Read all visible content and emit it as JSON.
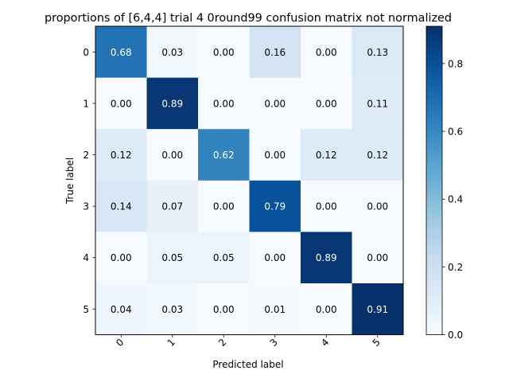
{
  "chart_data": {
    "type": "heatmap",
    "title": "proportions of [6,4,4] trial 4 0round99 confusion matrix not normalized",
    "xlabel": "Predicted label",
    "ylabel": "True label",
    "x_categories": [
      "0",
      "1",
      "2",
      "3",
      "4",
      "5"
    ],
    "y_categories": [
      "0",
      "1",
      "2",
      "3",
      "4",
      "5"
    ],
    "values": [
      [
        0.68,
        0.03,
        0.0,
        0.16,
        0.0,
        0.13
      ],
      [
        0.0,
        0.89,
        0.0,
        0.0,
        0.0,
        0.11
      ],
      [
        0.12,
        0.0,
        0.62,
        0.0,
        0.12,
        0.12
      ],
      [
        0.14,
        0.07,
        0.0,
        0.79,
        0.0,
        0.0
      ],
      [
        0.0,
        0.05,
        0.05,
        0.0,
        0.89,
        0.0
      ],
      [
        0.04,
        0.03,
        0.0,
        0.01,
        0.0,
        0.91
      ]
    ],
    "cell_labels": [
      [
        "0.68",
        "0.03",
        "0.00",
        "0.16",
        "0.00",
        "0.13"
      ],
      [
        "0.00",
        "0.89",
        "0.00",
        "0.00",
        "0.00",
        "0.11"
      ],
      [
        "0.12",
        "0.00",
        "0.62",
        "0.00",
        "0.12",
        "0.12"
      ],
      [
        "0.14",
        "0.07",
        "0.00",
        "0.79",
        "0.00",
        "0.00"
      ],
      [
        "0.00",
        "0.05",
        "0.05",
        "0.00",
        "0.89",
        "0.00"
      ],
      [
        "0.04",
        "0.03",
        "0.00",
        "0.01",
        "0.00",
        "0.91"
      ]
    ],
    "colormap": "Blues",
    "color_range": [
      0.0,
      0.91
    ],
    "colorbar_ticks": [
      0.0,
      0.2,
      0.4,
      0.6,
      0.8
    ],
    "colorbar_tick_labels": [
      "0.0",
      "0.2",
      "0.4",
      "0.6",
      "0.8"
    ],
    "text_color_dark": "#000000",
    "text_color_light": "#ffffff"
  }
}
